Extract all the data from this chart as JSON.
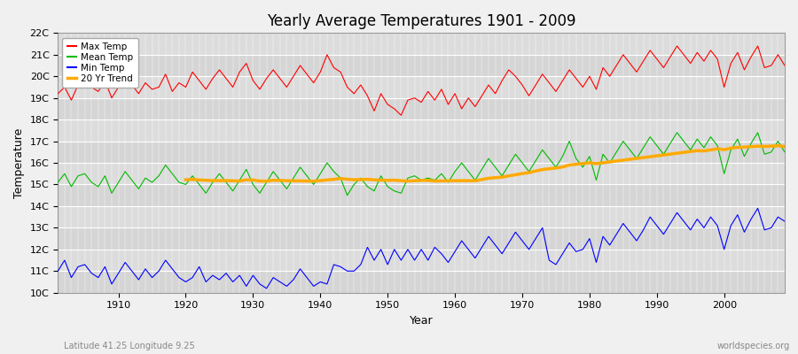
{
  "title": "Yearly Average Temperatures 1901 - 2009",
  "xlabel": "Year",
  "ylabel": "Temperature",
  "subtitle_left": "Latitude 41.25 Longitude 9.25",
  "subtitle_right": "worldspecies.org",
  "legend_entries": [
    "Max Temp",
    "Mean Temp",
    "Min Temp",
    "20 Yr Trend"
  ],
  "legend_colors": [
    "#ff0000",
    "#00bb00",
    "#0000ff",
    "#ffaa00"
  ],
  "ylim": [
    10,
    22
  ],
  "yticks": [
    10,
    11,
    12,
    13,
    14,
    15,
    16,
    17,
    18,
    19,
    20,
    21,
    22
  ],
  "ytick_labels": [
    "10C",
    "11C",
    "12C",
    "13C",
    "14C",
    "15C",
    "16C",
    "17C",
    "18C",
    "19C",
    "20C",
    "21C",
    "22C"
  ],
  "year_start": 1901,
  "year_end": 2009,
  "background_color": "#f0f0f0",
  "plot_bg_color": "#dcdcdc",
  "grid_color": "#ffffff",
  "max_temp": [
    19.2,
    19.5,
    18.9,
    19.6,
    19.9,
    19.5,
    19.3,
    19.8,
    19.0,
    19.5,
    20.0,
    19.6,
    19.2,
    19.7,
    19.4,
    19.5,
    20.1,
    19.3,
    19.7,
    19.5,
    20.2,
    19.8,
    19.4,
    19.9,
    20.3,
    19.9,
    19.5,
    20.2,
    20.6,
    19.8,
    19.4,
    19.9,
    20.3,
    19.9,
    19.5,
    20.0,
    20.5,
    20.1,
    19.7,
    20.2,
    21.0,
    20.4,
    20.2,
    19.5,
    19.2,
    19.6,
    19.1,
    18.4,
    19.2,
    18.7,
    18.5,
    18.2,
    18.9,
    19.0,
    18.8,
    19.3,
    18.9,
    19.4,
    18.7,
    19.2,
    18.5,
    19.0,
    18.6,
    19.1,
    19.6,
    19.2,
    19.8,
    20.3,
    20.0,
    19.6,
    19.1,
    19.6,
    20.1,
    19.7,
    19.3,
    19.8,
    20.3,
    19.9,
    19.5,
    20.0,
    19.4,
    20.4,
    20.0,
    20.5,
    21.0,
    20.6,
    20.2,
    20.7,
    21.2,
    20.8,
    20.4,
    20.9,
    21.4,
    21.0,
    20.6,
    21.1,
    20.7,
    21.2,
    20.8,
    19.5,
    20.6,
    21.1,
    20.3,
    20.9,
    21.4,
    20.4,
    20.5,
    21.0,
    20.5
  ],
  "mean_temp": [
    15.1,
    15.5,
    14.9,
    15.4,
    15.5,
    15.1,
    14.9,
    15.4,
    14.6,
    15.1,
    15.6,
    15.2,
    14.8,
    15.3,
    15.1,
    15.4,
    15.9,
    15.5,
    15.1,
    15.0,
    15.4,
    15.0,
    14.6,
    15.1,
    15.5,
    15.1,
    14.7,
    15.2,
    15.7,
    15.0,
    14.6,
    15.1,
    15.6,
    15.2,
    14.8,
    15.3,
    15.8,
    15.4,
    15.0,
    15.5,
    16.0,
    15.6,
    15.3,
    14.5,
    15.0,
    15.3,
    14.9,
    14.7,
    15.4,
    14.9,
    14.7,
    14.6,
    15.3,
    15.4,
    15.2,
    15.3,
    15.2,
    15.5,
    15.1,
    15.6,
    16.0,
    15.6,
    15.2,
    15.7,
    16.2,
    15.8,
    15.4,
    15.9,
    16.4,
    16.0,
    15.6,
    16.1,
    16.6,
    16.2,
    15.8,
    16.3,
    17.0,
    16.2,
    15.8,
    16.3,
    15.2,
    16.4,
    16.0,
    16.5,
    17.0,
    16.6,
    16.2,
    16.7,
    17.2,
    16.8,
    16.4,
    16.9,
    17.4,
    17.0,
    16.6,
    17.1,
    16.7,
    17.2,
    16.8,
    15.5,
    16.6,
    17.1,
    16.3,
    16.9,
    17.4,
    16.4,
    16.5,
    17.0,
    16.5
  ],
  "min_temp": [
    11.0,
    11.5,
    10.7,
    11.2,
    11.3,
    10.9,
    10.7,
    11.2,
    10.4,
    10.9,
    11.4,
    11.0,
    10.6,
    11.1,
    10.7,
    11.0,
    11.5,
    11.1,
    10.7,
    10.5,
    10.7,
    11.2,
    10.5,
    10.8,
    10.6,
    10.9,
    10.5,
    10.8,
    10.3,
    10.8,
    10.4,
    10.2,
    10.7,
    10.5,
    10.3,
    10.6,
    11.1,
    10.7,
    10.3,
    10.5,
    10.4,
    11.3,
    11.2,
    11.0,
    11.0,
    11.3,
    12.1,
    11.5,
    12.0,
    11.3,
    12.0,
    11.5,
    12.0,
    11.5,
    12.0,
    11.5,
    12.1,
    11.8,
    11.4,
    11.9,
    12.4,
    12.0,
    11.6,
    12.1,
    12.6,
    12.2,
    11.8,
    12.3,
    12.8,
    12.4,
    12.0,
    12.5,
    13.0,
    11.5,
    11.3,
    11.8,
    12.3,
    11.9,
    12.0,
    12.5,
    11.4,
    12.6,
    12.2,
    12.7,
    13.2,
    12.8,
    12.4,
    12.9,
    13.5,
    13.1,
    12.7,
    13.2,
    13.7,
    13.3,
    12.9,
    13.4,
    13.0,
    13.5,
    13.1,
    12.0,
    13.1,
    13.6,
    12.8,
    13.4,
    13.9,
    12.9,
    13.0,
    13.5,
    13.3
  ]
}
